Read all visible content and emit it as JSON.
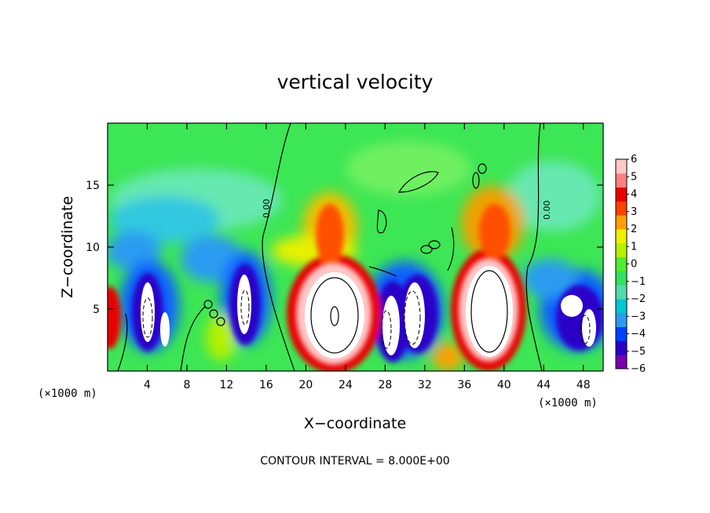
{
  "chart_data": {
    "type": "heatmap",
    "title": "vertical velocity",
    "xlabel": "X−coordinate",
    "ylabel": "Z−coordinate",
    "x_unit_left": "(×1000 m)",
    "x_unit_right": "(×1000 m)",
    "xlim": [
      0,
      50
    ],
    "ylim": [
      0,
      20
    ],
    "x_ticks": [
      4,
      8,
      12,
      16,
      20,
      24,
      28,
      32,
      36,
      40,
      44,
      48
    ],
    "y_ticks": [
      5,
      10,
      15
    ],
    "contour_label": "0.00",
    "footer": "CONTOUR INTERVAL = 8.000E+00",
    "colorbar": {
      "ticks": [
        "6",
        "5",
        "4",
        "3",
        "2",
        "1",
        "0",
        "−1",
        "−2",
        "−3",
        "−4",
        "−5",
        "−6"
      ],
      "range": [
        -6,
        6
      ],
      "colors": [
        "#7a00b0",
        "#2a00c8",
        "#0040ff",
        "#2c9bf0",
        "#00c8d2",
        "#50dcaa",
        "#30e060",
        "#50ec30",
        "#b4f000",
        "#f0f000",
        "#ffa000",
        "#ff4000",
        "#e80000",
        "#ff8080",
        "#ffc8c8"
      ]
    },
    "features": [
      {
        "type": "updraft",
        "x": 22.5,
        "z": 4.8,
        "peak": "above 6"
      },
      {
        "type": "updraft",
        "x": 38.0,
        "z": 5.0,
        "peak": "above 6"
      },
      {
        "type": "updraft",
        "x": 0.6,
        "z": 3.8,
        "peak": 5
      },
      {
        "type": "downdraft",
        "x": 5.0,
        "z": 4.5,
        "peak": "below −6"
      },
      {
        "type": "downdraft",
        "x": 13.5,
        "z": 5.0,
        "peak": "below −6"
      },
      {
        "type": "downdraft",
        "x": 30.0,
        "z": 4.0,
        "peak": "below −6"
      },
      {
        "type": "downdraft",
        "x": 47.0,
        "z": 4.5,
        "peak": "below −6"
      }
    ]
  }
}
